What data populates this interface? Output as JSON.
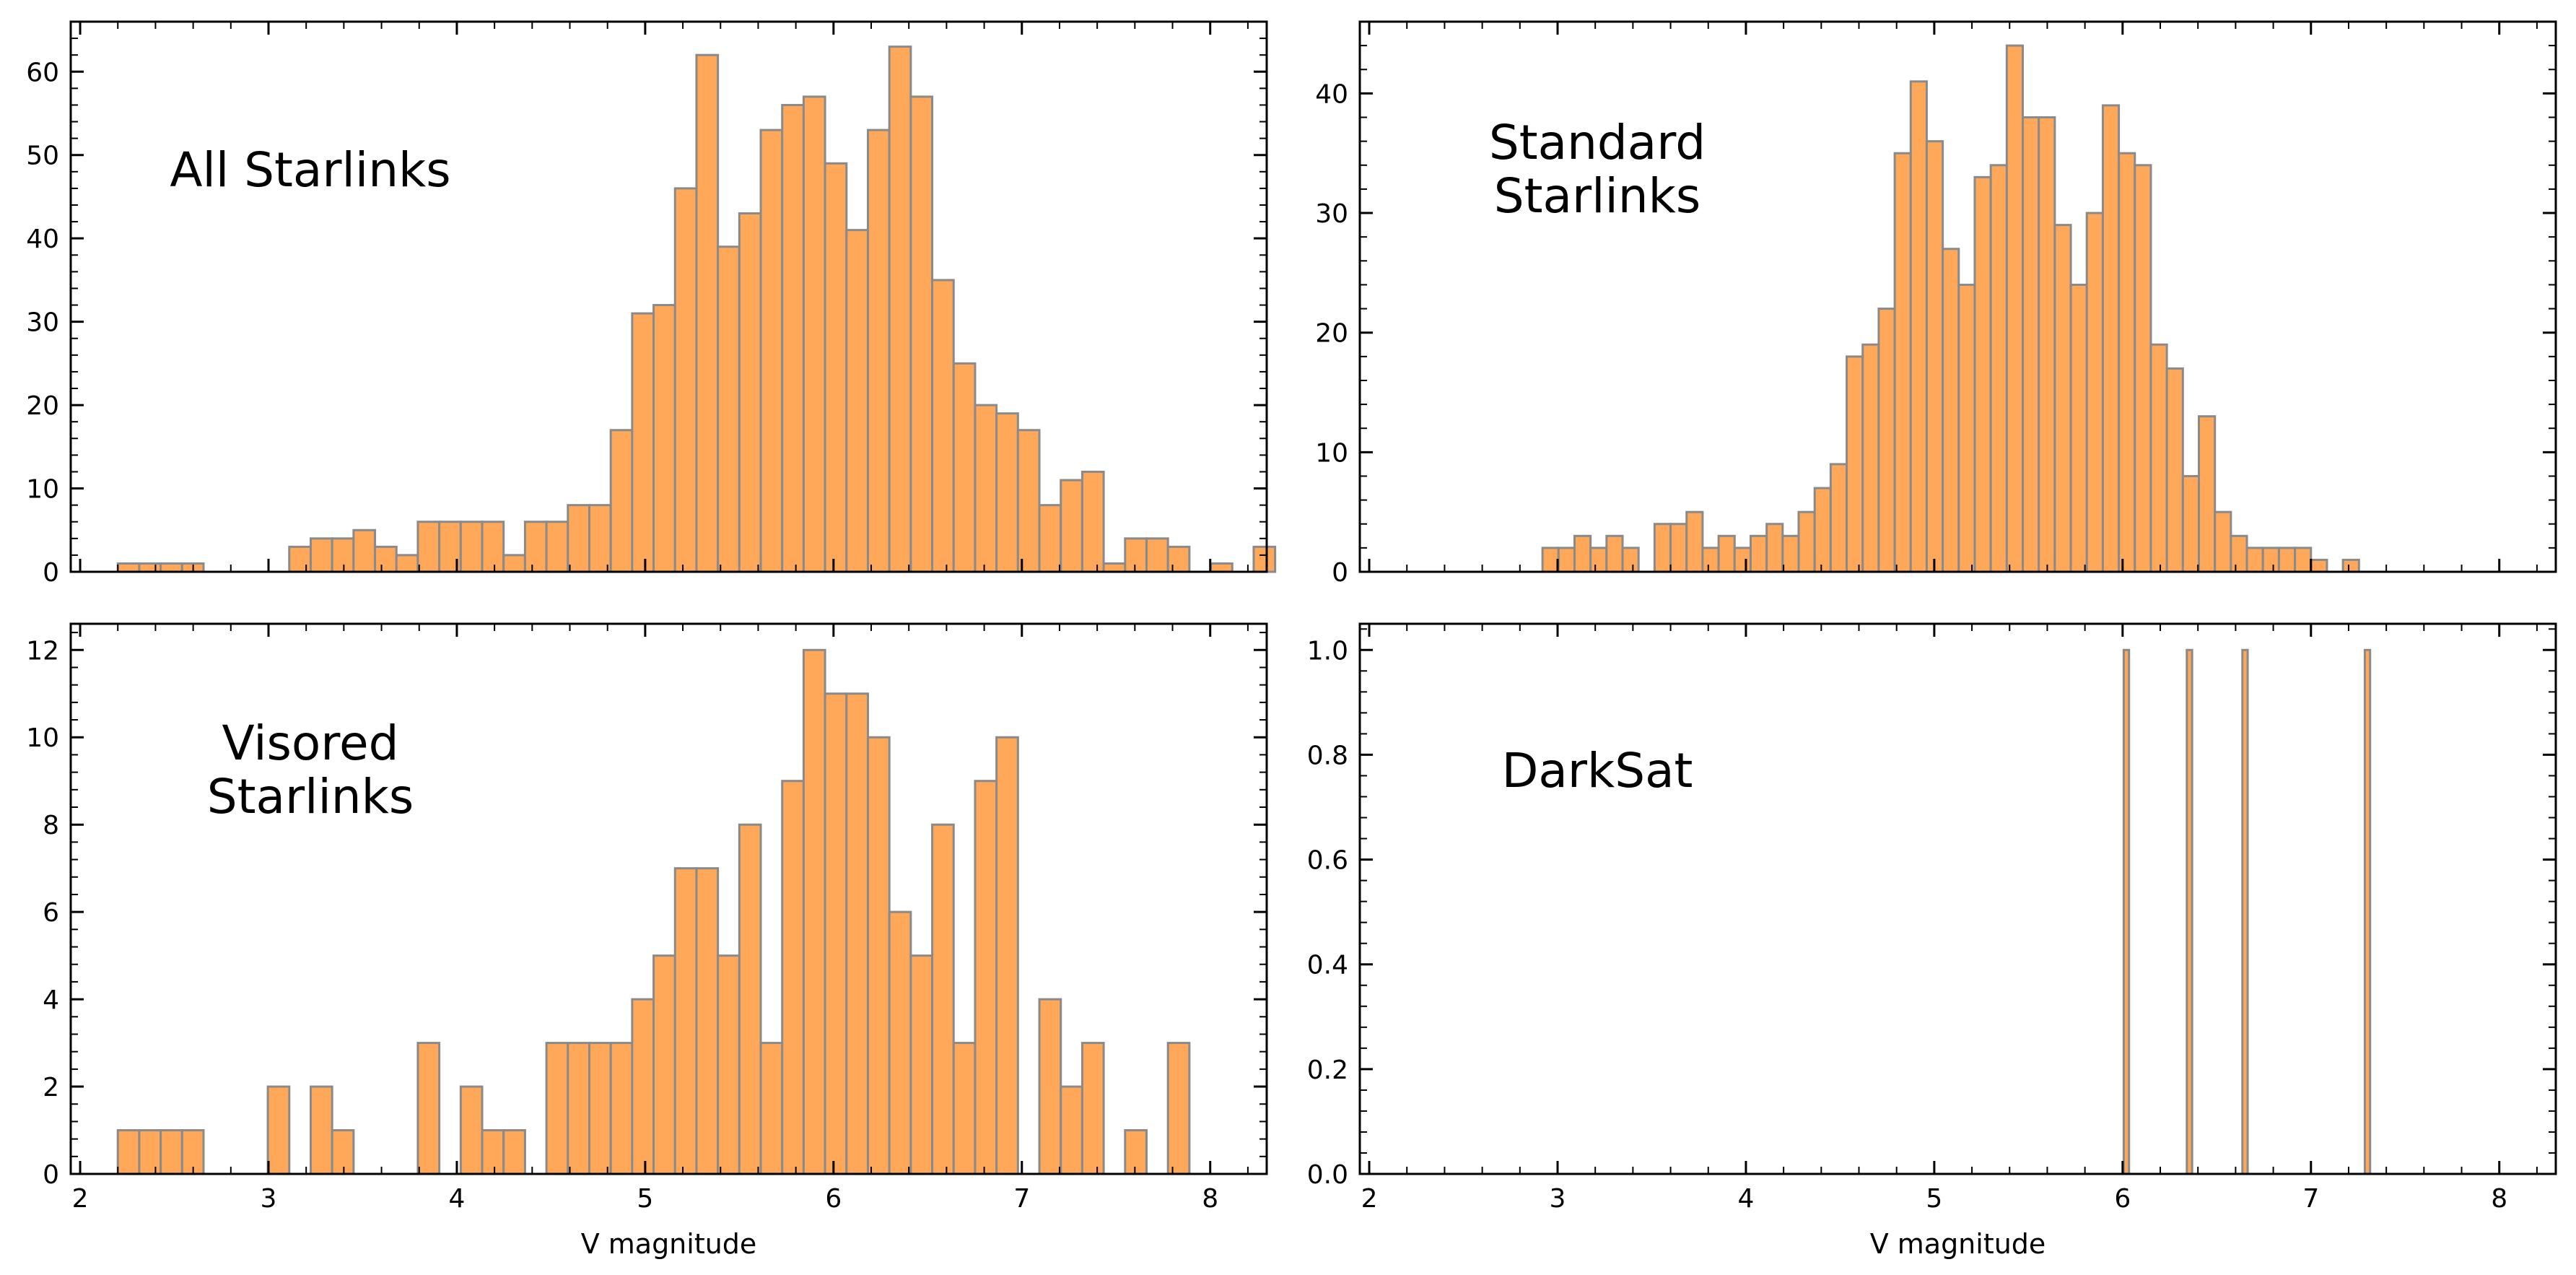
{
  "chart_data": [
    {
      "type": "bar",
      "histogram": true,
      "annotation": [
        "All Starlinks"
      ],
      "xlabel": "",
      "ylabel": "",
      "xlim": [
        1.95,
        8.3
      ],
      "ylim": [
        0,
        66
      ],
      "xticks": [
        2,
        3,
        4,
        5,
        6,
        7,
        8
      ],
      "yticks": [
        0,
        10,
        20,
        30,
        40,
        50,
        60
      ],
      "show_xtick_labels": false,
      "bin_start": 2.2,
      "bin_width": 0.11379,
      "values": [
        1,
        1,
        1,
        1,
        0,
        0,
        0,
        0,
        3,
        4,
        4,
        5,
        3,
        2,
        6,
        6,
        6,
        6,
        2,
        6,
        6,
        8,
        8,
        17,
        31,
        32,
        46,
        62,
        39,
        43,
        53,
        56,
        57,
        49,
        41,
        53,
        63,
        57,
        35,
        25,
        20,
        19,
        17,
        8,
        11,
        12,
        1,
        4,
        4,
        3,
        0,
        1,
        0,
        3
      ]
    },
    {
      "type": "bar",
      "histogram": true,
      "annotation": [
        "Standard",
        "Starlinks"
      ],
      "xlabel": "",
      "ylabel": "",
      "xlim": [
        1.95,
        8.3
      ],
      "ylim": [
        0,
        46
      ],
      "xticks": [
        2,
        3,
        4,
        5,
        6,
        7,
        8
      ],
      "yticks": [
        0,
        10,
        20,
        30,
        40
      ],
      "show_xtick_labels": false,
      "bin_start": 2.92,
      "bin_width": 0.085,
      "values": [
        2,
        2,
        3,
        2,
        3,
        2,
        0,
        4,
        4,
        5,
        2,
        3,
        2,
        3,
        4,
        3,
        5,
        7,
        9,
        18,
        19,
        22,
        35,
        41,
        36,
        27,
        24,
        33,
        34,
        44,
        38,
        38,
        29,
        24,
        30,
        39,
        35,
        34,
        19,
        17,
        8,
        13,
        5,
        3,
        2,
        2,
        2,
        2,
        1,
        0,
        1
      ]
    },
    {
      "type": "bar",
      "histogram": true,
      "annotation": [
        "Visored",
        "Starlinks"
      ],
      "xlabel": "V magnitude",
      "ylabel": "",
      "xlim": [
        1.95,
        8.3
      ],
      "ylim": [
        0,
        12.6
      ],
      "xticks": [
        2,
        3,
        4,
        5,
        6,
        7,
        8
      ],
      "yticks": [
        0,
        2,
        4,
        6,
        8,
        10,
        12
      ],
      "show_xtick_labels": true,
      "bin_start": 2.2,
      "bin_width": 0.11379,
      "values": [
        1,
        1,
        1,
        1,
        0,
        0,
        0,
        2,
        0,
        2,
        1,
        0,
        0,
        0,
        3,
        0,
        2,
        1,
        1,
        0,
        3,
        3,
        3,
        3,
        4,
        5,
        7,
        7,
        5,
        8,
        3,
        9,
        12,
        11,
        11,
        10,
        6,
        5,
        8,
        3,
        9,
        10,
        0,
        4,
        2,
        3,
        0,
        1,
        0,
        3
      ]
    },
    {
      "type": "bar",
      "histogram": true,
      "annotation": [
        "DarkSat"
      ],
      "xlabel": "V magnitude",
      "ylabel": "",
      "xlim": [
        1.95,
        8.3
      ],
      "ylim": [
        0,
        1.05
      ],
      "xticks": [
        2,
        3,
        4,
        5,
        6,
        7,
        8
      ],
      "yticks": [
        0.0,
        0.2,
        0.4,
        0.6,
        0.8,
        1.0
      ],
      "show_xtick_labels": true,
      "bar_width": 0.0281,
      "bars": [
        {
          "x": 6.02,
          "value": 1
        },
        {
          "x": 6.355,
          "value": 1
        },
        {
          "x": 6.65,
          "value": 1
        },
        {
          "x": 7.3,
          "value": 1
        }
      ]
    }
  ]
}
